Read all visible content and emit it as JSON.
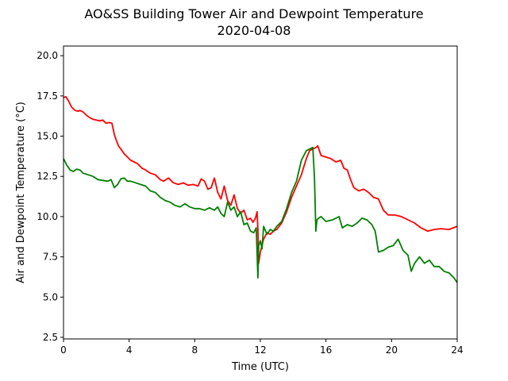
{
  "chart_data": {
    "type": "line",
    "title": "AO&SS Building Tower Air and Dewpoint Temperature",
    "subtitle": "2020-04-08",
    "xlabel": "Time (UTC)",
    "ylabel": "Air and Dewpoint Temperature (°C)",
    "xlim": [
      0,
      24
    ],
    "ylim": [
      2.4,
      20.6
    ],
    "x_ticks": [
      0,
      4,
      8,
      12,
      16,
      20,
      24
    ],
    "y_ticks": [
      2.5,
      5.0,
      7.5,
      10.0,
      12.5,
      15.0,
      17.5,
      20.0
    ],
    "grid": false,
    "legend": "none",
    "series": [
      {
        "color": "#ff0000",
        "x": [
          0,
          0.15,
          0.3,
          0.5,
          0.7,
          0.9,
          1.0,
          1.2,
          1.4,
          1.6,
          1.8,
          2.0,
          2.2,
          2.4,
          2.6,
          2.8,
          2.95,
          3.1,
          3.2,
          3.35,
          3.5,
          3.7,
          3.9,
          4.1,
          4.3,
          4.5,
          4.8,
          5.0,
          5.3,
          5.6,
          5.9,
          6.1,
          6.4,
          6.7,
          7.0,
          7.3,
          7.6,
          7.9,
          8.2,
          8.4,
          8.6,
          8.8,
          9.0,
          9.2,
          9.4,
          9.6,
          9.8,
          10.0,
          10.2,
          10.4,
          10.6,
          10.8,
          11.0,
          11.2,
          11.4,
          11.55,
          11.7,
          11.8,
          11.85,
          11.9,
          12.0,
          12.2,
          12.4,
          12.6,
          12.8,
          13.0,
          13.3,
          13.6,
          13.9,
          14.2,
          14.5,
          14.8,
          15.0,
          15.2,
          15.4,
          15.5,
          15.7,
          16.0,
          16.3,
          16.6,
          16.9,
          17.1,
          17.3,
          17.5,
          17.7,
          18.0,
          18.3,
          18.6,
          18.9,
          19.2,
          19.5,
          19.8,
          20.2,
          20.6,
          21.0,
          21.4,
          21.8,
          22.2,
          22.6,
          23.0,
          23.5,
          24.0
        ],
        "values": [
          17.4,
          17.45,
          17.2,
          16.8,
          16.6,
          16.55,
          16.6,
          16.5,
          16.3,
          16.15,
          16.05,
          16.0,
          15.95,
          16.0,
          15.8,
          15.85,
          15.8,
          15.1,
          14.8,
          14.4,
          14.2,
          13.9,
          13.7,
          13.5,
          13.4,
          13.3,
          13.0,
          12.9,
          12.7,
          12.6,
          12.3,
          12.2,
          12.4,
          12.1,
          12.0,
          12.1,
          11.95,
          12.0,
          11.9,
          12.35,
          12.2,
          11.7,
          11.8,
          12.4,
          11.5,
          11.1,
          11.9,
          11.0,
          10.7,
          11.35,
          10.5,
          10.2,
          10.4,
          9.8,
          9.9,
          9.65,
          9.9,
          10.3,
          9.2,
          7.1,
          7.8,
          8.6,
          9.0,
          8.9,
          9.1,
          9.2,
          9.6,
          10.3,
          11.2,
          11.9,
          12.6,
          13.6,
          14.1,
          14.2,
          14.3,
          14.4,
          13.8,
          13.7,
          13.6,
          13.4,
          13.5,
          13.0,
          12.9,
          12.3,
          11.8,
          11.6,
          11.7,
          11.5,
          11.2,
          11.1,
          10.4,
          10.1,
          10.1,
          10.0,
          9.8,
          9.6,
          9.3,
          9.1,
          9.2,
          9.25,
          9.2,
          9.4
        ]
      },
      {
        "color": "#008000",
        "x": [
          0,
          0.2,
          0.4,
          0.6,
          0.8,
          1.0,
          1.2,
          1.5,
          1.8,
          2.1,
          2.4,
          2.7,
          2.9,
          3.1,
          3.3,
          3.5,
          3.7,
          3.9,
          4.1,
          4.4,
          4.7,
          5.0,
          5.3,
          5.6,
          5.9,
          6.2,
          6.5,
          6.8,
          7.1,
          7.4,
          7.7,
          8.0,
          8.3,
          8.6,
          8.9,
          9.2,
          9.4,
          9.6,
          9.8,
          10.0,
          10.2,
          10.4,
          10.6,
          10.8,
          11.0,
          11.2,
          11.4,
          11.6,
          11.75,
          11.8,
          11.85,
          11.9,
          12.0,
          12.1,
          12.2,
          12.4,
          12.6,
          12.8,
          13.0,
          13.3,
          13.6,
          13.9,
          14.2,
          14.5,
          14.8,
          15.0,
          15.2,
          15.3,
          15.38,
          15.45,
          15.55,
          15.7,
          16.0,
          16.4,
          16.8,
          17.0,
          17.3,
          17.6,
          17.9,
          18.2,
          18.5,
          18.8,
          19.0,
          19.2,
          19.5,
          19.8,
          20.1,
          20.4,
          20.7,
          21.0,
          21.2,
          21.4,
          21.7,
          22.0,
          22.3,
          22.6,
          22.9,
          23.2,
          23.5,
          23.8,
          24.0
        ],
        "values": [
          13.6,
          13.2,
          12.9,
          12.8,
          12.95,
          12.9,
          12.7,
          12.6,
          12.5,
          12.3,
          12.25,
          12.2,
          12.3,
          11.8,
          12.0,
          12.35,
          12.4,
          12.2,
          12.2,
          12.1,
          12.0,
          11.9,
          11.6,
          11.5,
          11.2,
          11.0,
          10.9,
          10.7,
          10.6,
          10.8,
          10.6,
          10.5,
          10.5,
          10.4,
          10.55,
          10.4,
          10.6,
          10.2,
          10.0,
          10.9,
          10.4,
          10.6,
          10.0,
          10.3,
          9.5,
          9.6,
          9.1,
          9.0,
          9.3,
          7.7,
          6.2,
          8.2,
          8.5,
          8.0,
          9.4,
          8.9,
          9.2,
          9.1,
          9.4,
          9.7,
          10.5,
          11.5,
          12.2,
          13.5,
          14.1,
          14.2,
          14.3,
          12.4,
          9.1,
          9.8,
          9.9,
          10.0,
          9.7,
          9.8,
          10.0,
          9.3,
          9.5,
          9.4,
          9.6,
          9.9,
          9.8,
          9.5,
          9.1,
          7.8,
          7.9,
          8.1,
          8.2,
          8.6,
          7.9,
          7.6,
          6.6,
          7.1,
          7.5,
          7.1,
          7.3,
          6.9,
          6.9,
          6.6,
          6.5,
          6.2,
          5.9
        ]
      }
    ]
  }
}
